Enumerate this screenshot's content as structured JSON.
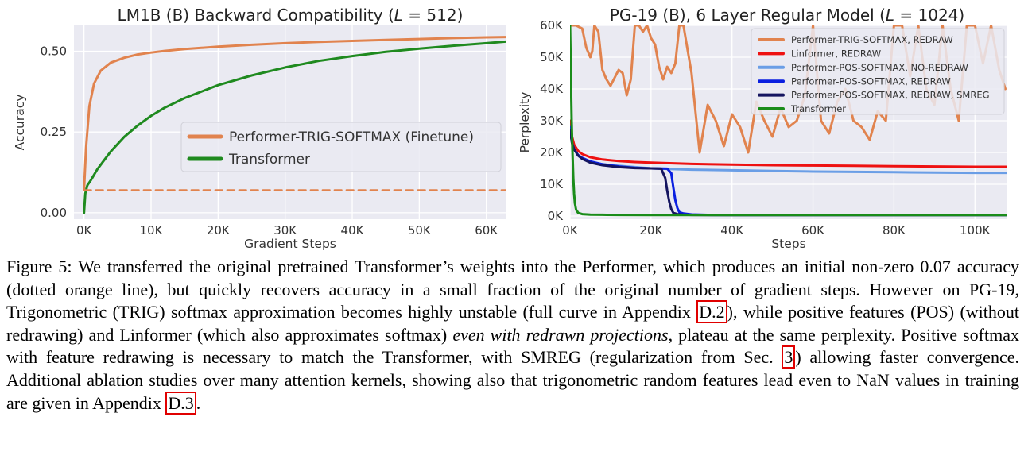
{
  "charts": [
    {
      "type": "line",
      "title": "LM1B (B) Backward Compatibility (L = 512)",
      "title_parts": {
        "prefix": "LM1B (B) Backward Compatibility (",
        "var": "L",
        "suffix": " = 512)"
      },
      "xlabel": "Gradient Steps",
      "ylabel": "Accuracy",
      "xlim": [
        -1500,
        63000
      ],
      "ylim": [
        -0.02,
        0.58
      ],
      "x_ticks": [
        0,
        10000,
        20000,
        30000,
        40000,
        50000,
        60000
      ],
      "x_tick_labels": [
        "0K",
        "10K",
        "20K",
        "30K",
        "40K",
        "50K",
        "60K"
      ],
      "y_ticks": [
        0.0,
        0.25,
        0.5
      ],
      "y_tick_labels": [
        "0.00",
        "0.25",
        "0.50"
      ],
      "grid": true,
      "legend_position": "center-right",
      "series": [
        {
          "name": "Performer-TRIG-SOFTMAX (Finetune)",
          "color": "#e1834e",
          "x": [
            0,
            300,
            800,
            1500,
            2500,
            4000,
            6000,
            8000,
            10000,
            12000,
            15000,
            20000,
            25000,
            30000,
            35000,
            40000,
            45000,
            50000,
            55000,
            60000,
            63000
          ],
          "y": [
            0.07,
            0.2,
            0.33,
            0.4,
            0.44,
            0.465,
            0.48,
            0.49,
            0.496,
            0.501,
            0.507,
            0.514,
            0.52,
            0.525,
            0.529,
            0.532,
            0.535,
            0.538,
            0.541,
            0.543,
            0.544
          ]
        },
        {
          "name": "Transformer",
          "color": "#1f8a1f",
          "x": [
            0,
            200,
            500,
            1000,
            2000,
            4000,
            6000,
            8000,
            10000,
            12000,
            15000,
            20000,
            25000,
            30000,
            35000,
            40000,
            45000,
            50000,
            55000,
            60000,
            63000
          ],
          "y": [
            0.0,
            0.06,
            0.085,
            0.1,
            0.135,
            0.19,
            0.235,
            0.27,
            0.3,
            0.325,
            0.355,
            0.395,
            0.425,
            0.45,
            0.47,
            0.485,
            0.498,
            0.508,
            0.517,
            0.525,
            0.53
          ]
        },
        {
          "name": "",
          "color": "#e1834e",
          "dashed": true,
          "x": [
            0,
            63000
          ],
          "y": [
            0.07,
            0.07
          ]
        }
      ]
    },
    {
      "type": "line",
      "title": "PG-19 (B), 6 Layer Regular Model (L = 1024)",
      "title_parts": {
        "prefix": "PG-19 (B), 6 Layer Regular Model (",
        "var": "L",
        "suffix": " = 1024)"
      },
      "xlabel": "Steps",
      "ylabel": "Perplexity",
      "xlim": [
        0,
        108000
      ],
      "ylim": [
        -1000,
        60000
      ],
      "x_ticks": [
        0,
        20000,
        40000,
        60000,
        80000,
        100000
      ],
      "x_tick_labels": [
        "0K",
        "20K",
        "40K",
        "60K",
        "80K",
        "100K"
      ],
      "y_ticks": [
        0,
        10000,
        20000,
        30000,
        40000,
        50000,
        60000
      ],
      "y_tick_labels": [
        "0K",
        "10K",
        "20K",
        "30K",
        "40K",
        "50K",
        "60K"
      ],
      "grid": true,
      "legend_position": "top-right",
      "series": [
        {
          "name": "Performer-TRIG-SOFTMAX, REDRAW",
          "color": "#e1834e",
          "x": [
            0,
            1500,
            3000,
            4000,
            5000,
            5500,
            6000,
            7000,
            8000,
            9000,
            10000,
            11000,
            12000,
            13000,
            14000,
            15000,
            16000,
            17000,
            18000,
            19000,
            20000,
            21000,
            22000,
            23000,
            24000,
            25000,
            26000,
            27000,
            28000,
            30000,
            32000,
            34000,
            36000,
            38000,
            40000,
            42000,
            44000,
            46000,
            48000,
            50000,
            52000,
            54000,
            56000,
            58000,
            60000,
            62000,
            64000,
            66000,
            68000,
            70000,
            72000,
            74000,
            76000,
            78000,
            80000,
            82000,
            84000,
            86000,
            88000,
            90000,
            92000,
            94000,
            96000,
            98000,
            100000,
            102000,
            104000,
            106000,
            107500
          ],
          "y": [
            60000,
            60000,
            59000,
            53000,
            50000,
            52000,
            60000,
            58000,
            46000,
            43000,
            41000,
            43500,
            46000,
            45000,
            38000,
            43000,
            60000,
            60000,
            58000,
            60000,
            56000,
            54000,
            47000,
            43000,
            47000,
            45000,
            48000,
            60000,
            60000,
            45000,
            20000,
            35000,
            30000,
            22000,
            32000,
            28000,
            20000,
            36000,
            30000,
            25000,
            34000,
            28000,
            30000,
            38000,
            60000,
            30000,
            26000,
            36000,
            40000,
            30000,
            28000,
            24000,
            33000,
            30000,
            60000,
            60000,
            44000,
            60000,
            40000,
            35000,
            60000,
            40000,
            30000,
            60000,
            60000,
            48000,
            60000,
            46000,
            40000
          ]
        },
        {
          "name": "Linformer, REDRAW",
          "color": "#ee1111",
          "x": [
            0,
            500,
            1000,
            2000,
            3000,
            5000,
            8000,
            12000,
            16000,
            20000,
            30000,
            40000,
            50000,
            60000,
            70000,
            80000,
            90000,
            100000,
            108000
          ],
          "y": [
            30000,
            25000,
            22500,
            20500,
            19500,
            18500,
            17800,
            17300,
            17000,
            16800,
            16400,
            16200,
            16000,
            15900,
            15800,
            15700,
            15600,
            15500,
            15500
          ]
        },
        {
          "name": "Performer-POS-SOFTMAX, NO-REDRAW",
          "color": "#6a9ee6",
          "x": [
            0,
            500,
            1000,
            2000,
            3000,
            5000,
            8000,
            12000,
            16000,
            20000,
            30000,
            40000,
            50000,
            60000,
            70000,
            80000,
            90000,
            100000,
            108000
          ],
          "y": [
            28000,
            23000,
            21000,
            19000,
            18000,
            17000,
            16300,
            15800,
            15400,
            15000,
            14600,
            14400,
            14200,
            14000,
            13900,
            13800,
            13700,
            13600,
            13600
          ]
        },
        {
          "name": "Performer-POS-SOFTMAX, REDRAW",
          "color": "#0a1fe0",
          "x": [
            0,
            500,
            1000,
            2000,
            3000,
            5000,
            8000,
            12000,
            16000,
            20000,
            24000,
            25000,
            25500,
            26000,
            26500,
            27000,
            28000,
            30000,
            35000,
            40000,
            60000,
            80000,
            100000,
            108000
          ],
          "y": [
            28000,
            23000,
            21000,
            19200,
            18300,
            17200,
            16300,
            15600,
            15200,
            15000,
            14900,
            13500,
            9000,
            5000,
            2500,
            1200,
            800,
            500,
            350,
            300,
            300,
            300,
            300,
            300
          ]
        },
        {
          "name": "Performer-POS-SOFTMAX, REDRAW, SMREG",
          "color": "#151560",
          "x": [
            0,
            500,
            1000,
            2000,
            3000,
            5000,
            8000,
            12000,
            16000,
            20000,
            22500,
            23500,
            24000,
            24500,
            25000,
            25500,
            26500,
            28000,
            30000,
            35000,
            40000,
            60000,
            80000,
            100000,
            108000
          ],
          "y": [
            27000,
            23000,
            21000,
            19000,
            18000,
            16800,
            16000,
            15400,
            15100,
            15000,
            14900,
            12000,
            8000,
            4500,
            2200,
            1000,
            600,
            450,
            350,
            300,
            300,
            300,
            300,
            300,
            300
          ]
        },
        {
          "name": "Transformer",
          "color": "#1a8c1a",
          "x": [
            0,
            200,
            400,
            600,
            800,
            1000,
            1200,
            1500,
            2000,
            3000,
            5000,
            8000,
            12000,
            20000,
            40000,
            60000,
            80000,
            100000,
            108000
          ],
          "y": [
            60000,
            45000,
            30000,
            20000,
            12000,
            7000,
            4000,
            2000,
            1000,
            600,
            450,
            400,
            350,
            320,
            300,
            300,
            300,
            300,
            300
          ]
        }
      ]
    }
  ],
  "caption": {
    "label": "Figure 5:",
    "part1": " We transferred the original pretrained Transformer’s weights into the Performer, which produces an initial non-zero 0.07 accuracy (dotted orange line), but quickly recovers accuracy in a small fraction of the original number of gradient steps. However on PG-19, Trigonometric (TRIG) softmax approximation becomes highly unstable (full curve in Appendix ",
    "ref1": "D.2",
    "part2": "), while positive features (POS) (without redrawing) and Linformer (which also approximates softmax) ",
    "emph": "even with redrawn projections",
    "part3": ", plateau at the same perplexity. Positive softmax with feature redrawing is necessary to match the Transformer, with SMREG (regularization from Sec. ",
    "ref2": "3",
    "part4": ") allowing faster convergence. Additional ablation studies over many attention kernels, showing also that trigonometric random features lead even to NaN values in training are given in Appendix ",
    "ref3": "D.3",
    "part5": "."
  }
}
